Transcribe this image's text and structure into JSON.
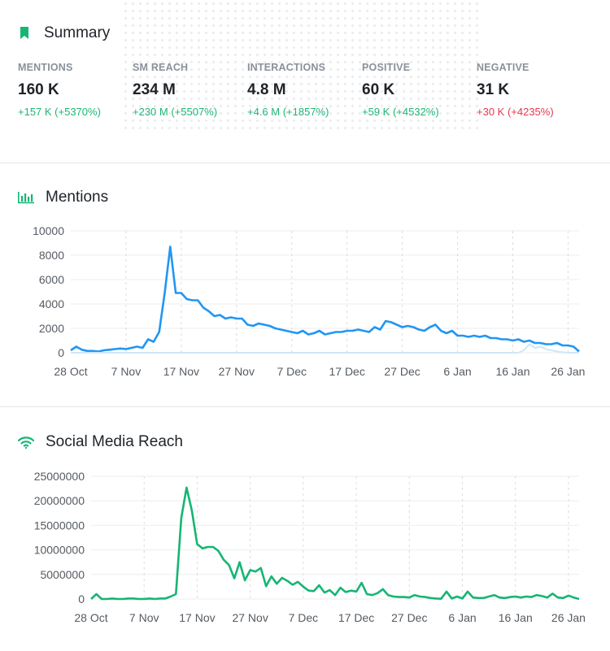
{
  "summary": {
    "title": "Summary",
    "icon": "bookmark-icon",
    "metrics": [
      {
        "label": "MENTIONS",
        "value": "160 K",
        "change": "+157 K  (+5370%)",
        "trend": "up"
      },
      {
        "label": "SM REACH",
        "value": "234 M",
        "change": "+230 M  (+5507%)",
        "trend": "up"
      },
      {
        "label": "INTERACTIONS",
        "value": "4.8 M",
        "change": "+4.6 M  (+1857%)",
        "trend": "up"
      },
      {
        "label": "POSITIVE",
        "value": "60 K",
        "change": "+59 K  (+4532%)",
        "trend": "up"
      },
      {
        "label": "NEGATIVE",
        "value": "31 K",
        "change": "+30 K  (+4235%)",
        "trend": "down"
      }
    ]
  },
  "colors": {
    "positive": "#1fb674",
    "negative": "#e5384e",
    "mentions_line": "#2196f3",
    "reach_line": "#16b574",
    "comparison_line": "#cfe6f7",
    "icon_green": "#16b574"
  },
  "mentions_section": {
    "title": "Mentions",
    "icon": "bar-chart-icon"
  },
  "reach_section": {
    "title": "Social Media Reach",
    "icon": "wifi-signal-icon"
  },
  "chart_data": [
    {
      "type": "line",
      "ylim": [
        0,
        10000
      ],
      "yticks": [
        0,
        2000,
        4000,
        6000,
        8000,
        10000
      ],
      "xtick_labels": [
        "28 Oct",
        "7 Nov",
        "17 Nov",
        "27 Nov",
        "7 Dec",
        "17 Dec",
        "27 Dec",
        "6 Jan",
        "16 Jan",
        "26 Jan"
      ],
      "grid": true,
      "series": [
        {
          "values": [
            200,
            500,
            250,
            150,
            150,
            100,
            200,
            250,
            300,
            350,
            300,
            400,
            500,
            400,
            1100,
            900,
            1700,
            4900,
            8700,
            4900,
            4900,
            4400,
            4300,
            4300,
            3700,
            3400,
            3000,
            3100,
            2800,
            2900,
            2800,
            2800,
            2300,
            2200,
            2400,
            2300,
            2200,
            2000,
            1900,
            1800,
            1700,
            1600,
            1800,
            1500,
            1600,
            1800,
            1500,
            1600,
            1700,
            1700,
            1800,
            1800,
            1900,
            1800,
            1700,
            2100,
            1900,
            2600,
            2500,
            2300,
            2100,
            2200,
            2100,
            1900,
            1800,
            2100,
            2300,
            1800,
            1600,
            1800,
            1400,
            1400,
            1300,
            1400,
            1300,
            1400,
            1200,
            1200,
            1100,
            1100,
            1000,
            1100,
            900,
            1000,
            800,
            800,
            700,
            700,
            800,
            600,
            600,
            500,
            100
          ]
        },
        {
          "values": [
            0,
            0,
            0,
            0,
            0,
            0,
            0,
            0,
            0,
            0,
            0,
            0,
            0,
            0,
            0,
            0,
            0,
            0,
            0,
            0,
            0,
            0,
            0,
            0,
            0,
            0,
            0,
            0,
            0,
            0,
            0,
            0,
            0,
            0,
            0,
            0,
            0,
            0,
            0,
            0,
            0,
            0,
            0,
            0,
            0,
            0,
            0,
            0,
            0,
            0,
            0,
            0,
            0,
            0,
            0,
            0,
            0,
            0,
            0,
            0,
            0,
            0,
            0,
            0,
            0,
            0,
            0,
            0,
            0,
            0,
            0,
            0,
            0,
            0,
            0,
            0,
            0,
            0,
            0,
            0,
            0,
            0,
            200,
            700,
            400,
            500,
            300,
            200,
            100,
            50,
            0,
            0,
            0
          ]
        }
      ]
    },
    {
      "type": "line",
      "ylim": [
        0,
        25000000
      ],
      "yticks": [
        0,
        5000000,
        10000000,
        15000000,
        20000000,
        25000000
      ],
      "xtick_labels": [
        "28 Oct",
        "7 Nov",
        "17 Nov",
        "27 Nov",
        "7 Dec",
        "17 Dec",
        "27 Dec",
        "6 Jan",
        "16 Jan",
        "26 Jan"
      ],
      "grid": true,
      "series": [
        {
          "values": [
            0,
            1000000,
            0,
            0,
            100000,
            0,
            0,
            100000,
            100000,
            0,
            0,
            100000,
            0,
            100000,
            100000,
            500000,
            1000000,
            16500000,
            22700000,
            18000000,
            11200000,
            10300000,
            10600000,
            10600000,
            9800000,
            8000000,
            6900000,
            4200000,
            7500000,
            3800000,
            5900000,
            5600000,
            6300000,
            2600000,
            4600000,
            3100000,
            4300000,
            3700000,
            2900000,
            3500000,
            2500000,
            1700000,
            1600000,
            2800000,
            1300000,
            1800000,
            800000,
            2300000,
            1400000,
            1700000,
            1500000,
            3300000,
            1000000,
            800000,
            1200000,
            2000000,
            800000,
            500000,
            400000,
            400000,
            300000,
            800000,
            500000,
            400000,
            200000,
            100000,
            50000,
            1500000,
            100000,
            500000,
            100000,
            1500000,
            300000,
            200000,
            200000,
            500000,
            800000,
            300000,
            200000,
            400000,
            500000,
            300000,
            500000,
            400000,
            800000,
            600000,
            300000,
            1100000,
            300000,
            200000,
            700000,
            300000,
            0
          ]
        }
      ]
    }
  ]
}
